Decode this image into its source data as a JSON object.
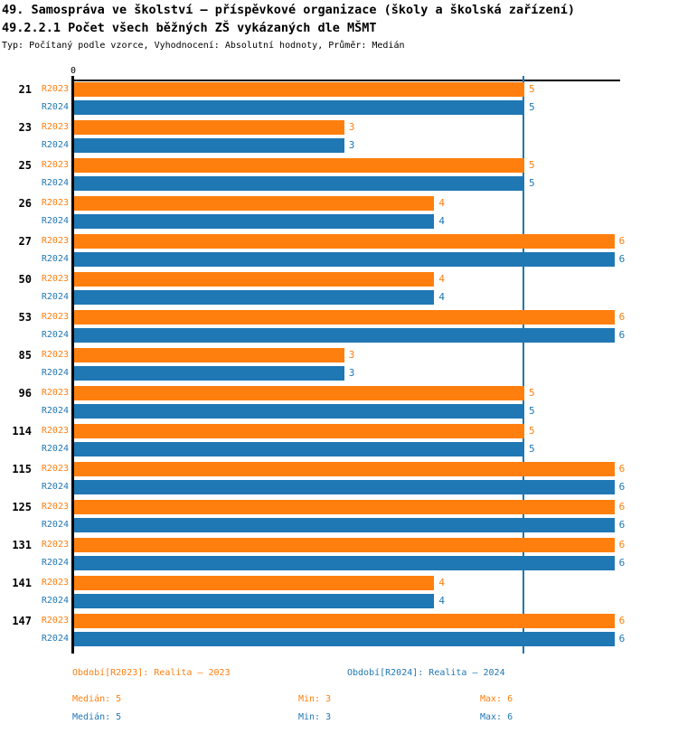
{
  "header": {
    "title": "49. Samospráva ve školství – příspěvkové organizace (školy a školská zařízení)",
    "subtitle": "49.2.2.1 Počet všech běžných ZŠ vykázaných dle MŠMT",
    "meta": "Typ: Počítaný podle vzorce, Vyhodnocení: Absolutní hodnoty, Průměr: Medián"
  },
  "chart_data": {
    "type": "bar",
    "orientation": "horizontal",
    "categories": [
      "21",
      "23",
      "25",
      "26",
      "27",
      "50",
      "53",
      "85",
      "96",
      "114",
      "115",
      "125",
      "131",
      "141",
      "147"
    ],
    "series": [
      {
        "name": "R2023",
        "color": "#ff7f0e",
        "values": [
          5,
          3,
          5,
          4,
          6,
          4,
          6,
          3,
          5,
          5,
          6,
          6,
          6,
          4,
          6
        ]
      },
      {
        "name": "R2024",
        "color": "#1f77b4",
        "values": [
          5,
          3,
          5,
          4,
          6,
          4,
          6,
          3,
          5,
          5,
          6,
          6,
          6,
          4,
          6
        ]
      }
    ],
    "xlim": [
      0,
      6.06
    ],
    "x_zero_label": "0",
    "median_reference": 5,
    "grid": false,
    "value_labels": true,
    "legend_position": "bottom"
  },
  "legend": {
    "r2023": "Období[R2023]: Realita – 2023",
    "r2024": "Období[R2024]: Realita – 2024"
  },
  "stats": {
    "r2023": {
      "median": "Medián: 5",
      "min": "Min: 3",
      "max": "Max: 6"
    },
    "r2024": {
      "median": "Medián: 5",
      "min": "Min: 3",
      "max": "Max: 6"
    }
  },
  "colors": {
    "r2023": "#ff7f0e",
    "r2024": "#1f77b4",
    "median_line": "#1f77b4",
    "axis": "#000000"
  }
}
